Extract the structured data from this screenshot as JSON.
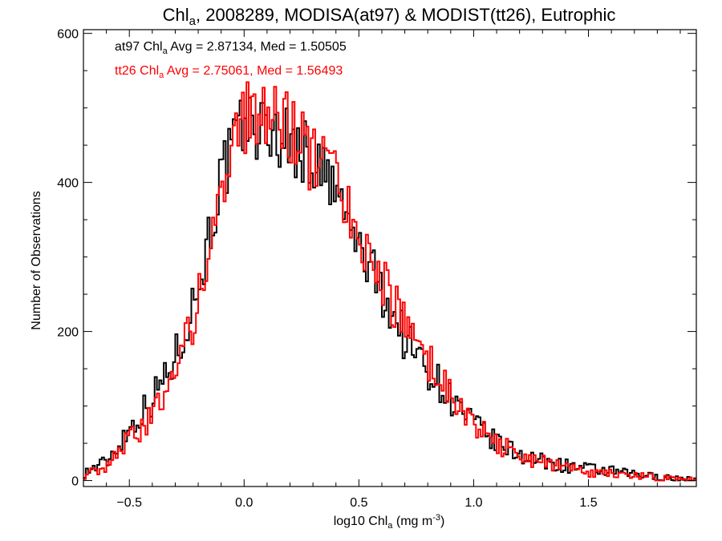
{
  "chart_data": {
    "type": "histogram",
    "title": {
      "prefix": "Chl",
      "subscript": "a",
      "suffix": ", 2008289, MODISA(at97) & MODIST(tt26), Eutrophic"
    },
    "xlabel": {
      "prefix": "log10 Chl",
      "subscript": "a",
      "middle": " (mg m",
      "superscript": "-3",
      "suffix": ")"
    },
    "ylabel": "Number of Observations",
    "xlim": [
      -0.7,
      1.97
    ],
    "ylim": [
      -8,
      605
    ],
    "xticks": [
      -0.5,
      0.0,
      0.5,
      1.0,
      1.5
    ],
    "xtick_labels": [
      "−0.5",
      "0.0",
      "0.5",
      "1.0",
      "1.5"
    ],
    "yticks": [
      0,
      200,
      400,
      600
    ],
    "ytick_labels": [
      "0",
      "200",
      "400",
      "600"
    ],
    "grid": false,
    "bin_width": 0.01,
    "series": [
      {
        "name": "at97",
        "color": "#000000",
        "label": {
          "prefix": "at97 Chl",
          "subscript": "a",
          "suffix": " Avg = 2.87134, Med = 1.50505"
        },
        "profile_x": [
          -0.7,
          -0.6,
          -0.5,
          -0.4,
          -0.3,
          -0.2,
          -0.1,
          0.0,
          0.1,
          0.2,
          0.3,
          0.4,
          0.5,
          0.6,
          0.7,
          0.8,
          0.9,
          1.0,
          1.1,
          1.2,
          1.3,
          1.4,
          1.5,
          1.6,
          1.7,
          1.8,
          1.9,
          1.97
        ],
        "profile_y": [
          10,
          25,
          70,
          110,
          165,
          260,
          405,
          480,
          470,
          455,
          430,
          385,
          310,
          255,
          190,
          150,
          110,
          75,
          50,
          35,
          25,
          20,
          15,
          12,
          8,
          5,
          2,
          1
        ]
      },
      {
        "name": "tt26",
        "color": "#ff0000",
        "label": {
          "prefix": "tt26 Chl",
          "subscript": "a",
          "suffix": " Avg = 2.75061, Med = 1.56493"
        },
        "profile_x": [
          -0.7,
          -0.6,
          -0.5,
          -0.4,
          -0.3,
          -0.2,
          -0.1,
          0.0,
          0.1,
          0.2,
          0.3,
          0.4,
          0.5,
          0.6,
          0.7,
          0.8,
          0.9,
          1.0,
          1.1,
          1.2,
          1.3,
          1.4,
          1.5,
          1.6,
          1.7,
          1.8,
          1.9,
          1.97
        ],
        "profile_y": [
          8,
          15,
          55,
          90,
          140,
          240,
          395,
          485,
          500,
          470,
          430,
          400,
          330,
          270,
          205,
          160,
          115,
          80,
          50,
          35,
          25,
          15,
          12,
          10,
          6,
          4,
          2,
          1
        ]
      }
    ]
  }
}
